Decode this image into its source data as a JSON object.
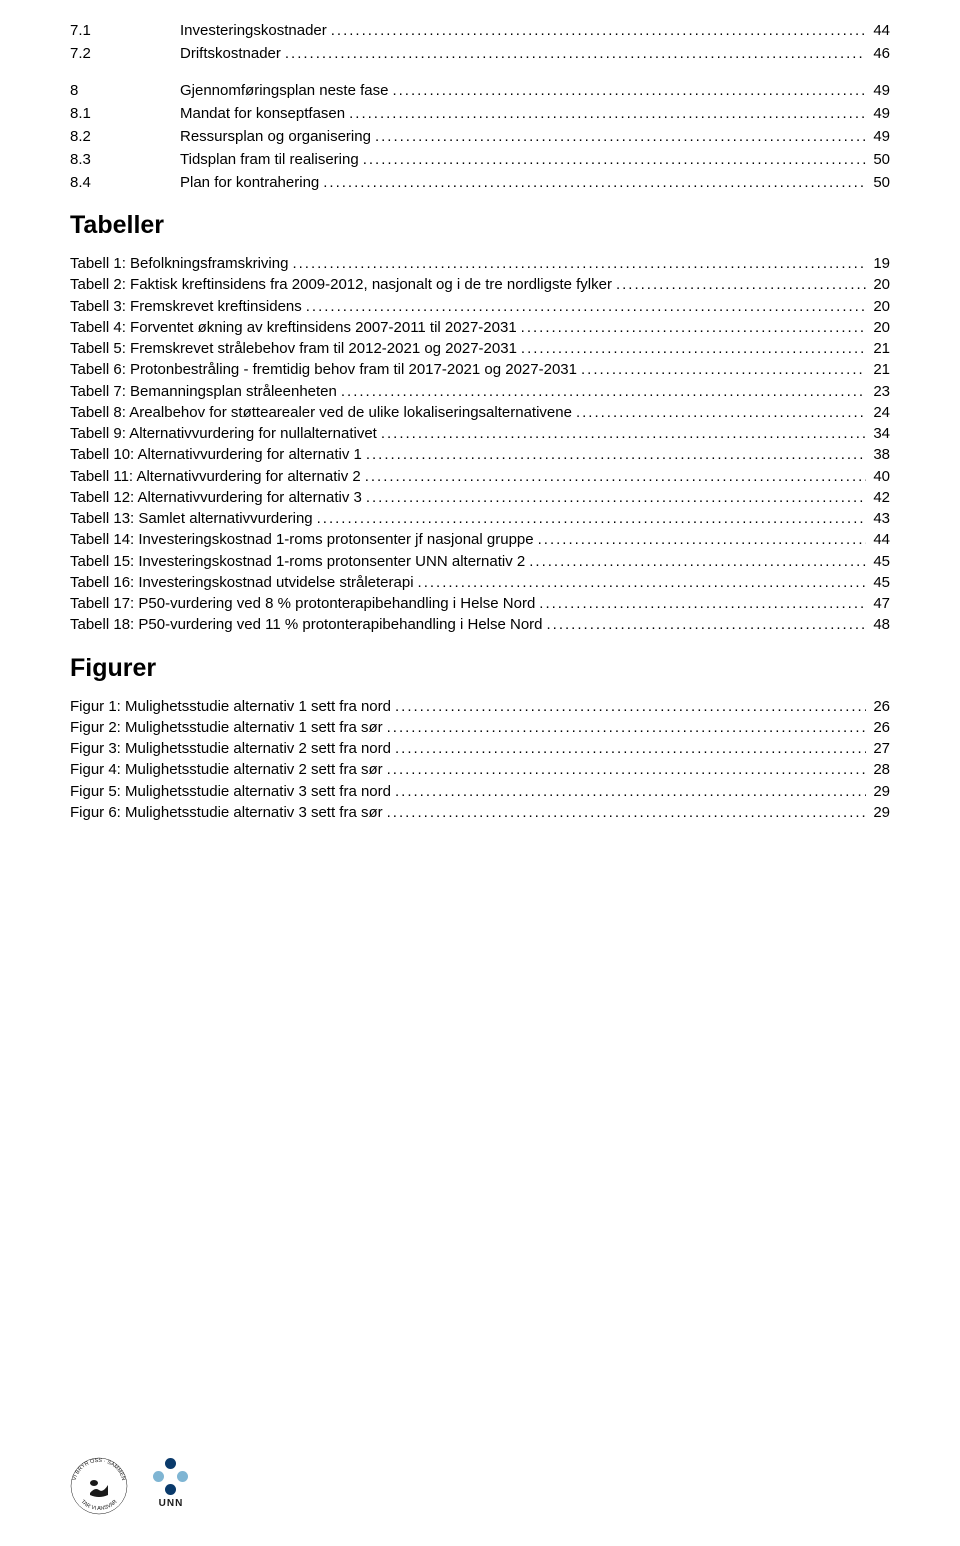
{
  "toc_sections": [
    {
      "num": "7.1",
      "title": "Investeringskostnader",
      "page": "44"
    },
    {
      "num": "7.2",
      "title": "Driftskostnader",
      "page": "46"
    }
  ],
  "chapter8": {
    "num": "8",
    "title": "Gjennomføringsplan neste fase",
    "page": "49"
  },
  "chapter8_subs": [
    {
      "num": "8.1",
      "title": "Mandat for konseptfasen",
      "page": "49"
    },
    {
      "num": "8.2",
      "title": "Ressursplan og organisering",
      "page": "49"
    },
    {
      "num": "8.3",
      "title": "Tidsplan fram til realisering",
      "page": "50"
    },
    {
      "num": "8.4",
      "title": "Plan for kontrahering",
      "page": "50"
    }
  ],
  "tables_heading": "Tabeller",
  "tables": [
    {
      "title": "Tabell 1: Befolkningsframskriving",
      "page": "19"
    },
    {
      "title": "Tabell 2: Faktisk kreftinsidens fra 2009-2012, nasjonalt og i de tre nordligste fylker",
      "page": "20"
    },
    {
      "title": "Tabell 3: Fremskrevet kreftinsidens",
      "page": "20"
    },
    {
      "title": "Tabell 4: Forventet økning av kreftinsidens 2007-2011 til 2027-2031",
      "page": "20"
    },
    {
      "title": "Tabell 5: Fremskrevet strålebehov fram til 2012-2021 og 2027-2031",
      "page": "21"
    },
    {
      "title": "Tabell 6: Protonbestråling - fremtidig behov fram til 2017-2021 og 2027-2031",
      "page": "21"
    },
    {
      "title": "Tabell 7: Bemanningsplan stråleenheten",
      "page": "23"
    },
    {
      "title": "Tabell 8: Arealbehov for støttearealer ved de ulike lokaliseringsalternativene",
      "page": "24"
    },
    {
      "title": "Tabell 9: Alternativvurdering for nullalternativet",
      "page": "34"
    },
    {
      "title": "Tabell 10: Alternativvurdering for alternativ 1",
      "page": "38"
    },
    {
      "title": "Tabell 11: Alternativvurdering for alternativ 2",
      "page": "40"
    },
    {
      "title": "Tabell 12: Alternativvurdering for alternativ 3",
      "page": "42"
    },
    {
      "title": "Tabell 13: Samlet alternativvurdering",
      "page": "43"
    },
    {
      "title": "Tabell 14: Investeringskostnad 1-roms protonsenter jf nasjonal gruppe",
      "page": "44"
    },
    {
      "title": "Tabell 15: Investeringskostnad 1-roms protonsenter UNN alternativ 2",
      "page": "45"
    },
    {
      "title": "Tabell 16: Investeringskostnad utvidelse stråleterapi",
      "page": "45"
    },
    {
      "title": "Tabell 17: P50-vurdering ved 8 % protonterapibehandling i Helse Nord",
      "page": "47"
    },
    {
      "title": "Tabell 18: P50-vurdering ved 11 % protonterapibehandling i Helse Nord",
      "page": "48"
    }
  ],
  "figures_heading": "Figurer",
  "figures": [
    {
      "title": "Figur 1: Mulighetsstudie alternativ 1 sett fra nord",
      "page": "26"
    },
    {
      "title": "Figur 2: Mulighetsstudie alternativ 1 sett fra sør",
      "page": "26"
    },
    {
      "title": "Figur 3: Mulighetsstudie alternativ 2 sett fra nord",
      "page": "27"
    },
    {
      "title": "Figur 4: Mulighetsstudie alternativ 2 sett fra sør",
      "page": "28"
    },
    {
      "title": "Figur 5: Mulighetsstudie alternativ 3 sett fra nord",
      "page": "29"
    },
    {
      "title": "Figur 6: Mulighetsstudie alternativ 3 sett fra sør",
      "page": "29"
    }
  ],
  "logo_colors": {
    "dot_top": "#0a3a6b",
    "dot_left": "#7fb5d3",
    "dot_right": "#7fb5d3",
    "dot_bottom": "#0a3a6b"
  },
  "unn_label": "UNN"
}
